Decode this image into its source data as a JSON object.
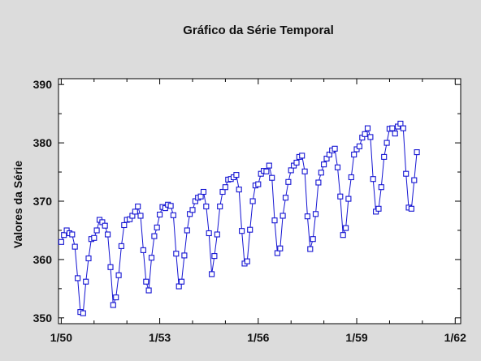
{
  "chart_data": {
    "type": "line",
    "title": "Gráfico da Série Temporal",
    "xlabel": "",
    "ylabel": "Valores da Série",
    "x_tick_labels": [
      "1/50",
      "1/53",
      "1/56",
      "1/59",
      "1/62"
    ],
    "y_ticks": [
      350,
      360,
      370,
      380,
      390
    ],
    "ylim": [
      349,
      391
    ],
    "x_start": "1/50",
    "x_frequency": "monthly",
    "x_range_months": [
      -1,
      146
    ],
    "grid": false,
    "marker": "square",
    "colors": {
      "series": "#1414d2",
      "background": "#dcdcdc",
      "plot_area": "#ffffff",
      "axis": "#000000"
    },
    "series": [
      {
        "values": [
          363,
          364.2,
          365,
          364.5,
          364.3,
          362.2,
          356.8,
          351,
          350.8,
          356.2,
          360.2,
          363.5,
          363.7,
          365,
          366.8,
          366.4,
          365.8,
          364.3,
          358.7,
          352.2,
          353.5,
          357.3,
          362.3,
          365.9,
          366.8,
          366.9,
          367.5,
          368.2,
          369.1,
          367.5,
          361.6,
          356.2,
          354.7,
          360.3,
          364,
          365.5,
          367.7,
          369,
          368.8,
          369.4,
          369.2,
          367.6,
          361,
          355.4,
          356.2,
          360.7,
          365,
          367.8,
          368.5,
          370,
          370.6,
          370.8,
          371.6,
          369.1,
          364.5,
          357.5,
          360.6,
          364.3,
          369.1,
          371.6,
          372.4,
          373.7,
          373.8,
          374.1,
          374.5,
          372,
          364.9,
          359.3,
          359.7,
          365.1,
          370,
          372.7,
          372.9,
          374.7,
          375.2,
          375.1,
          376.1,
          374,
          366.7,
          361.1,
          361.9,
          367.5,
          370.6,
          373.3,
          375.3,
          376.1,
          376.6,
          377.6,
          377.8,
          375.1,
          367.4,
          361.8,
          363.5,
          367.8,
          373.2,
          374.9,
          376.3,
          377.3,
          378,
          378.7,
          379,
          375.8,
          370.8,
          364.2,
          365.4,
          370.4,
          374.1,
          378,
          378.9,
          379.4,
          380.9,
          381.5,
          382.5,
          381,
          373.8,
          368.2,
          368.7,
          372.4,
          377.6,
          380,
          382.4,
          382.5,
          381.6,
          382.8,
          383.3,
          382.5,
          374.7,
          368.9,
          368.7,
          373.6,
          378.4
        ]
      }
    ]
  }
}
